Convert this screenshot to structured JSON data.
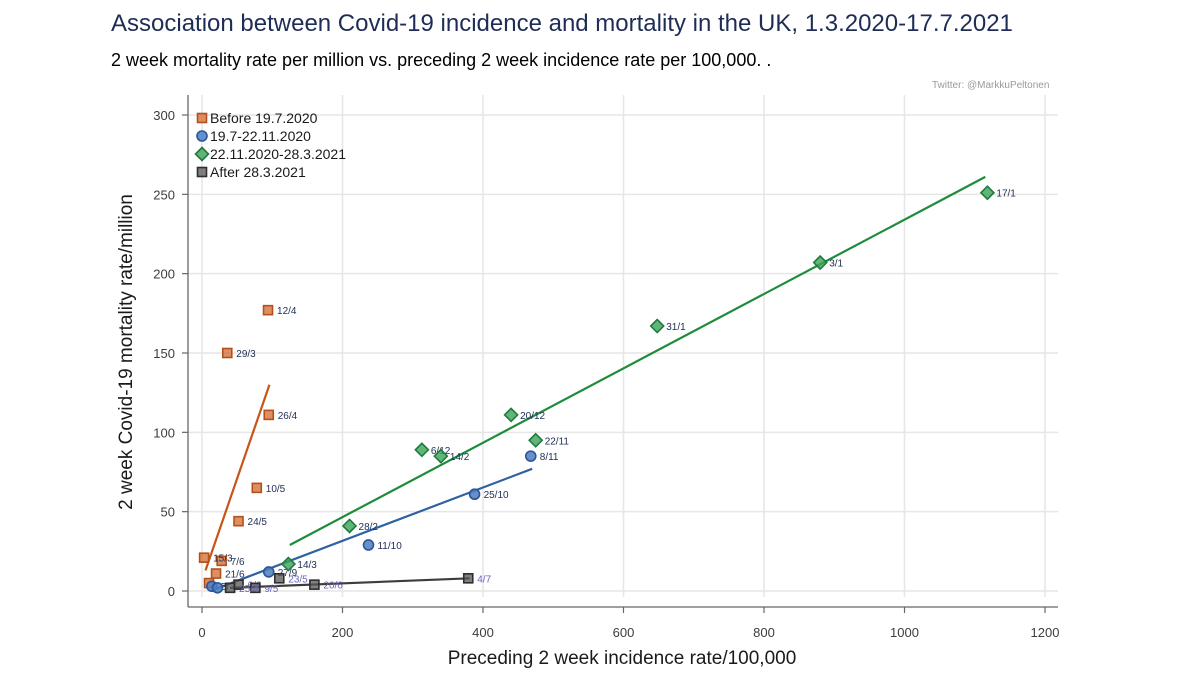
{
  "title": "Association between Covid-19 incidence and mortality in the UK, 1.3.2020-17.7.2021",
  "subtitle": "2 week mortality rate per million vs. preceding 2 week incidence rate per 100,000. .",
  "credit": "Twitter: @MarkkuPeltonen",
  "chart_data": {
    "type": "scatter",
    "xlabel": "Preceding 2 week incidence rate/100,000",
    "ylabel": "2 week Covid-19 mortality rate/million",
    "xlim": [
      0,
      1200
    ],
    "ylim": [
      0,
      300
    ],
    "xticks": [
      0,
      200,
      400,
      600,
      800,
      1000,
      1200
    ],
    "yticks": [
      0,
      50,
      100,
      150,
      200,
      250,
      300
    ],
    "grid": true,
    "legend_position": "top-left",
    "series": [
      {
        "name": "Before 19.7.2020",
        "marker": "square",
        "color": "#d2692f",
        "label_color": "#1f2d56",
        "points": [
          {
            "x": 94,
            "y": 177,
            "label": "12/4"
          },
          {
            "x": 36,
            "y": 150,
            "label": "29/3"
          },
          {
            "x": 95,
            "y": 111,
            "label": "26/4"
          },
          {
            "x": 78,
            "y": 65,
            "label": "10/5"
          },
          {
            "x": 52,
            "y": 44,
            "label": "24/5"
          },
          {
            "x": 28,
            "y": 19,
            "label": "7/6"
          },
          {
            "x": 20,
            "y": 11,
            "label": "21/6"
          },
          {
            "x": 3,
            "y": 21,
            "label": "15/3"
          },
          {
            "x": 10,
            "y": 5,
            "label": ""
          }
        ],
        "trend": [
          [
            5,
            13
          ],
          [
            96,
            130
          ]
        ]
      },
      {
        "name": "19.7-22.11.2020",
        "marker": "circle",
        "color": "#4a7cc0",
        "label_color": "#1f2d56",
        "points": [
          {
            "x": 468,
            "y": 85,
            "label": "8/11"
          },
          {
            "x": 388,
            "y": 61,
            "label": "25/10"
          },
          {
            "x": 237,
            "y": 29,
            "label": "11/10"
          },
          {
            "x": 95,
            "y": 12,
            "label": "27/9"
          },
          {
            "x": 14,
            "y": 3,
            "label": "5/"
          },
          {
            "x": 22,
            "y": 2,
            "label": ""
          }
        ],
        "trend": [
          [
            18,
            1
          ],
          [
            470,
            77
          ]
        ]
      },
      {
        "name": "22.11.2020-28.3.2021",
        "marker": "diamond",
        "color": "#3aa35a",
        "label_color": "#1f2d56",
        "points": [
          {
            "x": 1118,
            "y": 251,
            "label": "17/1"
          },
          {
            "x": 880,
            "y": 207,
            "label": "3/1"
          },
          {
            "x": 648,
            "y": 167,
            "label": "31/1"
          },
          {
            "x": 440,
            "y": 111,
            "label": "20/12"
          },
          {
            "x": 475,
            "y": 95,
            "label": "22/11"
          },
          {
            "x": 313,
            "y": 89,
            "label": "6/12"
          },
          {
            "x": 340,
            "y": 85,
            "label": "14/2"
          },
          {
            "x": 210,
            "y": 41,
            "label": "28/2"
          },
          {
            "x": 123,
            "y": 17,
            "label": "14/3"
          }
        ],
        "trend": [
          [
            125,
            29
          ],
          [
            1115,
            261
          ]
        ]
      },
      {
        "name": "After 28.3.2021",
        "marker": "square",
        "color": "#555555",
        "label_color": "#6a66b8",
        "points": [
          {
            "x": 379,
            "y": 8,
            "label": "4/7"
          },
          {
            "x": 160,
            "y": 4,
            "label": "20/6"
          },
          {
            "x": 110,
            "y": 8,
            "label": "23/5"
          },
          {
            "x": 52,
            "y": 4,
            "label": "6/6"
          },
          {
            "x": 76,
            "y": 2,
            "label": "9/5"
          },
          {
            "x": 40,
            "y": 2,
            "label": "25/4"
          }
        ],
        "trend": [
          [
            40,
            2
          ],
          [
            381,
            8
          ]
        ]
      }
    ]
  }
}
